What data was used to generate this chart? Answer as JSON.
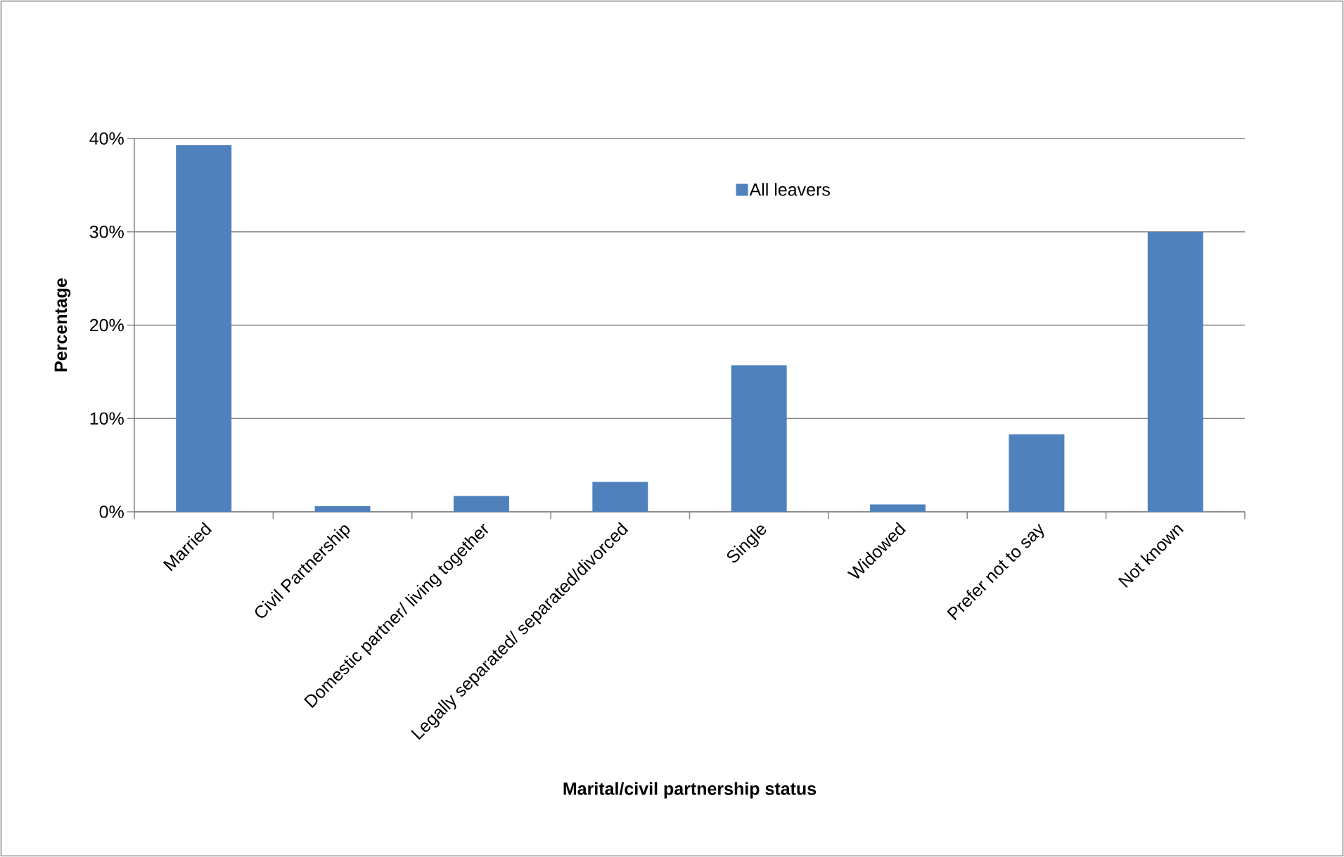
{
  "chart_data": {
    "type": "bar",
    "xlabel": "Marital/civil partnership status",
    "ylabel": "Percentage",
    "categories": [
      "Married",
      "Civil Partnership",
      "Domestic partner/ living together",
      "Legally separated/ separated/divorced",
      "Single",
      "Widowed",
      "Prefer not to say",
      "Not known"
    ],
    "series": [
      {
        "name": "All leavers",
        "color": "#4f81bd",
        "values": [
          39.3,
          0.6,
          1.7,
          3.2,
          15.7,
          0.8,
          8.3,
          30.0
        ]
      }
    ],
    "ylim": [
      0,
      40
    ],
    "yticks": [
      {
        "value": 0,
        "label": "0%"
      },
      {
        "value": 10,
        "label": "10%"
      },
      {
        "value": 20,
        "label": "20%"
      },
      {
        "value": 30,
        "label": "30%"
      },
      {
        "value": 40,
        "label": "40%"
      }
    ],
    "grid": "y",
    "legend": "top"
  }
}
